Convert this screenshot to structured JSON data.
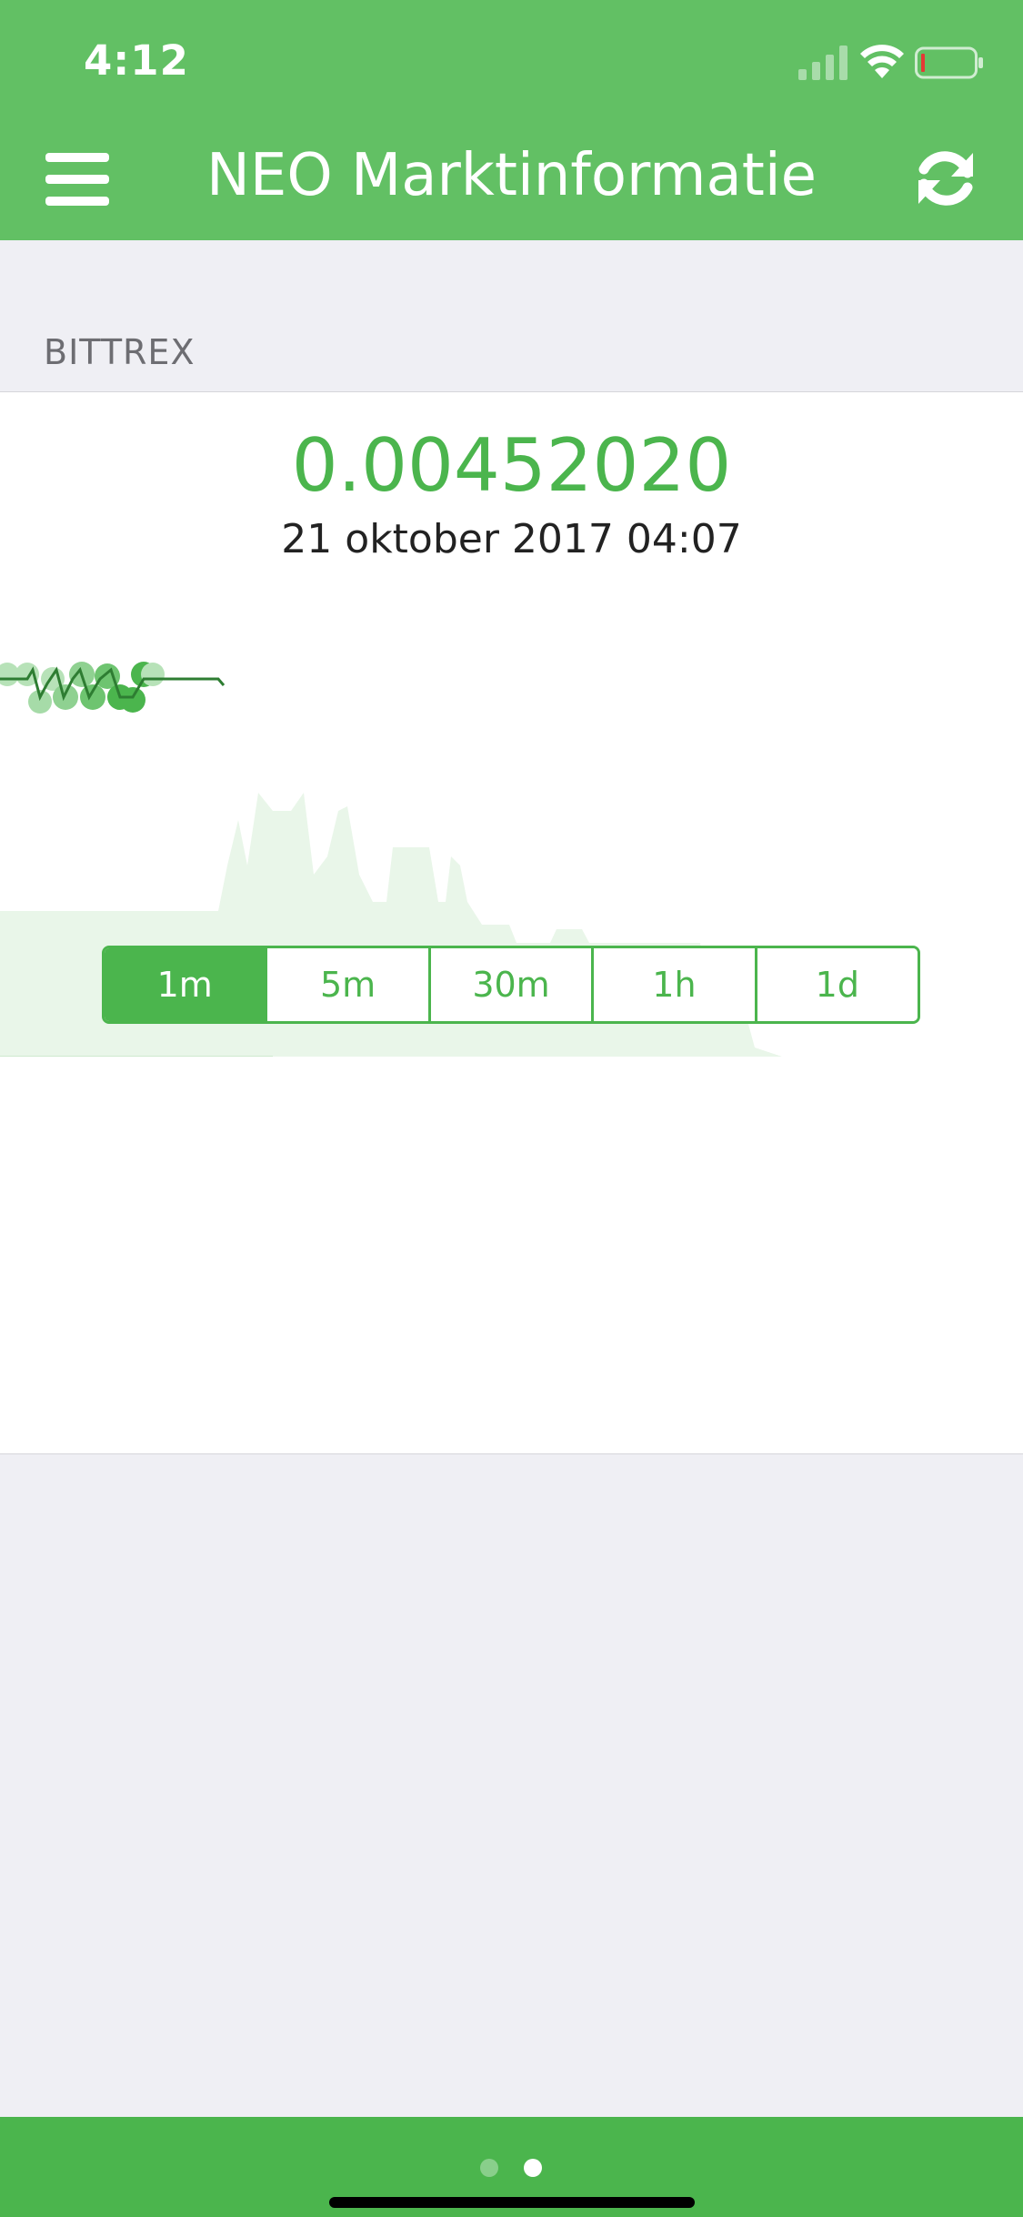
{
  "status_bar": {
    "time": "4:12",
    "icons": [
      "signal-icon",
      "wifi-icon",
      "battery-icon"
    ]
  },
  "nav": {
    "title": "NEO Marktinformatie",
    "left_icon": "menu-icon",
    "right_icon": "refresh-icon"
  },
  "section": {
    "header": "BITTREX"
  },
  "market": {
    "price": "0.00452020",
    "timestamp": "21 oktober 2017 04:07"
  },
  "interval_selector": {
    "options": [
      "1m",
      "5m",
      "30m",
      "1h",
      "1d"
    ],
    "selected": "1m"
  },
  "pager": {
    "pages": 2,
    "current_page": 2
  },
  "colors": {
    "brand_green": "#62c064",
    "accent_green": "#4bb54d",
    "chart_fill": "#e9f6e9",
    "background": "#efeff4"
  }
}
